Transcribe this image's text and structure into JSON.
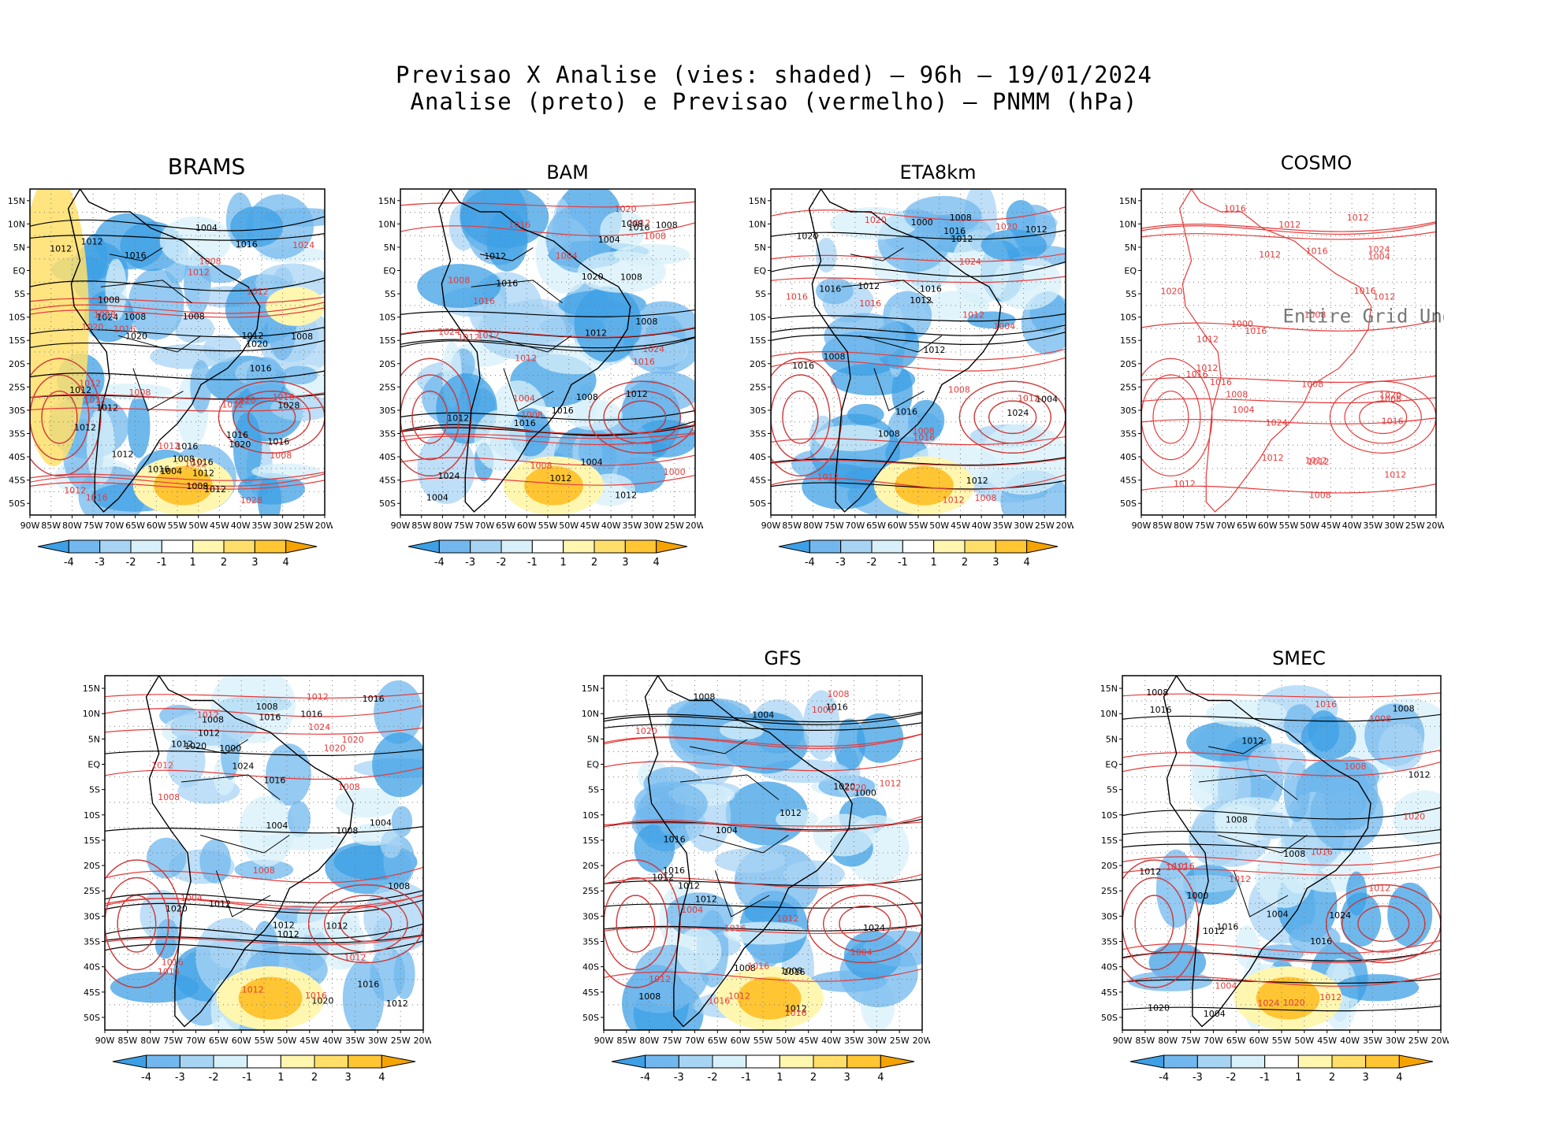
{
  "figure": {
    "title_line1": "Previsao X Analise (vies: shaded) – 96h – 19/01/2024",
    "title_line2": "Analise (preto) e Previsao (vermelho) – PNMM (hPa)"
  },
  "axes": {
    "lon_labels": [
      "90W",
      "85W",
      "80W",
      "75W",
      "70W",
      "65W",
      "60W",
      "55W",
      "50W",
      "45W",
      "40W",
      "35W",
      "30W",
      "25W",
      "20W"
    ],
    "lat_labels": [
      "15N",
      "10N",
      "5N",
      "EQ",
      "5S",
      "10S",
      "15S",
      "20S",
      "25S",
      "30S",
      "35S",
      "40S",
      "45S",
      "50S"
    ]
  },
  "colorbar": {
    "labels": [
      "-4",
      "-3",
      "-2",
      "-1",
      "1",
      "2",
      "3",
      "4"
    ],
    "colors": [
      "#3da0e6",
      "#72b8ee",
      "#a8d4f4",
      "#d8f0fa",
      "#ffffff",
      "#fff6b0",
      "#ffdf6a",
      "#ffc533",
      "#f5a300"
    ]
  },
  "colors": {
    "analysis": "#000000",
    "forecast": "#e53a3a",
    "land": "#000000"
  },
  "panels": [
    {
      "id": "brams",
      "title": "BRAMS",
      "labels": {
        "black": [
          "1016",
          "1016",
          "1008",
          "1012",
          "1008",
          "1012",
          "1008",
          "1012",
          "1012",
          "1008",
          "1012",
          "1016",
          "1004",
          "1012",
          "1016",
          "1012",
          "1016",
          "1020",
          "1028",
          "1020",
          "1012",
          "1016",
          "1024",
          "1020",
          "1016",
          "1012",
          "1004",
          "1008",
          "1016",
          "1008"
        ],
        "red": [
          "1012",
          "1012",
          "1008",
          "1012",
          "1008",
          "1012",
          "1012",
          "1008",
          "1012",
          "1016",
          "1020",
          "1024",
          "1028",
          "1016",
          "1012",
          "1020",
          "1008",
          "1012",
          "1016"
        ]
      },
      "note": ""
    },
    {
      "id": "bam",
      "title": "BAM",
      "labels": {
        "black": [
          "1016",
          "1012",
          "1008",
          "1012",
          "1008",
          "1012",
          "1008",
          "1012",
          "1004",
          "1012",
          "1016",
          "1020",
          "1024",
          "1016",
          "1008",
          "1004",
          "1012",
          "1008",
          "1016",
          "1004"
        ],
        "red": [
          "1012",
          "1016",
          "1008",
          "1008",
          "1012",
          "1016",
          "1004",
          "1020",
          "1024",
          "1016",
          "1012",
          "1008",
          "1004",
          "1000",
          "1012",
          "1008",
          "1024"
        ]
      },
      "note": ""
    },
    {
      "id": "eta8km",
      "title": "ETA8km",
      "labels": {
        "black": [
          "1012",
          "1016",
          "1008",
          "1012",
          "1008",
          "1012",
          "1016",
          "1012",
          "1016",
          "1020",
          "1024",
          "1016",
          "1012",
          "1008",
          "1004",
          "1000",
          "1016",
          "1012"
        ],
        "red": [
          "1012",
          "1008",
          "1016",
          "1012",
          "1008",
          "1016",
          "1020",
          "1024",
          "1012",
          "1004",
          "1008",
          "1020",
          "1016",
          "1012"
        ]
      },
      "note": ""
    },
    {
      "id": "cosmo",
      "title": "COSMO",
      "labels": {
        "black": [],
        "red": [
          "1012",
          "1008",
          "1012",
          "1016",
          "1012",
          "1016",
          "1012",
          "1008",
          "1012",
          "1016",
          "1016",
          "1012",
          "1008",
          "1012",
          "1016",
          "1012",
          "1012",
          "1016",
          "1020",
          "1024",
          "1024",
          "1020",
          "1016",
          "1012",
          "1008",
          "1004",
          "1000",
          "1012",
          "1008",
          "1004"
        ]
      },
      "note": "Entire Grid Und"
    },
    {
      "id": "model5",
      "title": "",
      "labels": {
        "black": [
          "1020",
          "1016",
          "1012",
          "1008",
          "1012",
          "1008",
          "1012",
          "1016",
          "1012",
          "1016",
          "1012",
          "1008",
          "1012",
          "1016",
          "1020",
          "1024",
          "1004",
          "1000",
          "1008",
          "1016",
          "1020",
          "1012",
          "1004"
        ],
        "red": [
          "1012",
          "1008",
          "1016",
          "1012",
          "1020",
          "1016",
          "1012",
          "1008",
          "1024",
          "1020",
          "1016",
          "1012",
          "1004",
          "1008",
          "1012"
        ]
      },
      "note": ""
    },
    {
      "id": "gfs",
      "title": "GFS",
      "labels": {
        "black": [
          "1016",
          "1012",
          "1008",
          "1012",
          "1016",
          "1012",
          "1008",
          "1012",
          "1016",
          "1020",
          "1024",
          "1016",
          "1012",
          "1008",
          "1004",
          "1000",
          "1004",
          "1008"
        ],
        "red": [
          "1012",
          "1016",
          "1008",
          "1012",
          "1016",
          "1020",
          "1012",
          "1016",
          "1004",
          "1008",
          "1012",
          "1016",
          "1020",
          "1004"
        ]
      },
      "note": ""
    },
    {
      "id": "smec",
      "title": "SMEC",
      "labels": {
        "black": [
          "1016",
          "1008",
          "1012",
          "1008",
          "1012",
          "1016",
          "1012",
          "1016",
          "1020",
          "1024",
          "1012",
          "1008",
          "1004",
          "1000",
          "1004",
          "1008"
        ],
        "red": [
          "1016",
          "1012",
          "1008",
          "1012",
          "1016",
          "1020",
          "1012",
          "1004",
          "1008",
          "1012",
          "1016",
          "1020",
          "1024"
        ]
      },
      "note": ""
    }
  ]
}
